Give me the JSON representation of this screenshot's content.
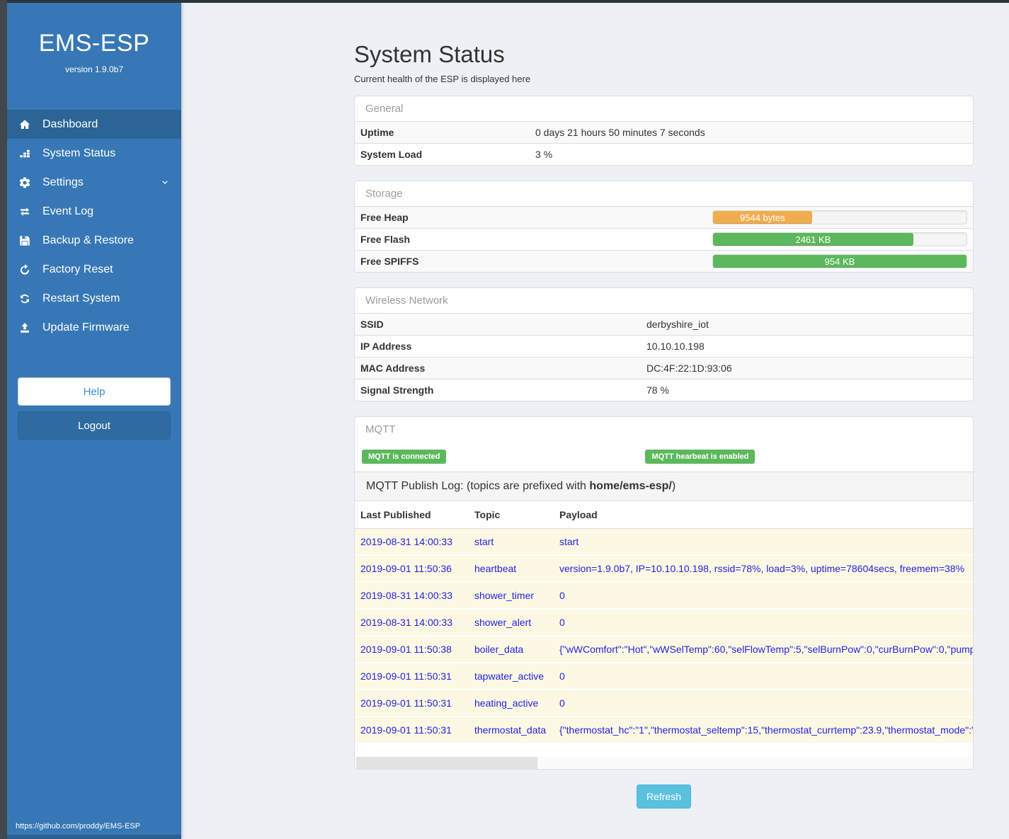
{
  "app": {
    "title": "EMS-ESP",
    "version": "version 1.9.0b7",
    "footer_url": "https://github.com/proddy/EMS-ESP"
  },
  "sidebar": {
    "items": [
      {
        "key": "dashboard",
        "label": "Dashboard",
        "icon": "home",
        "active": true,
        "chevron": false
      },
      {
        "key": "system-status",
        "label": "System Status",
        "icon": "status",
        "active": false,
        "chevron": false
      },
      {
        "key": "settings",
        "label": "Settings",
        "icon": "gear",
        "active": false,
        "chevron": true
      },
      {
        "key": "event-log",
        "label": "Event Log",
        "icon": "exchange",
        "active": false,
        "chevron": false
      },
      {
        "key": "backup-restore",
        "label": "Backup & Restore",
        "icon": "save",
        "active": false,
        "chevron": false
      },
      {
        "key": "factory-reset",
        "label": "Factory Reset",
        "icon": "repeat",
        "active": false,
        "chevron": false
      },
      {
        "key": "restart-system",
        "label": "Restart System",
        "icon": "sync",
        "active": false,
        "chevron": false
      },
      {
        "key": "update-firmware",
        "label": "Update Firmware",
        "icon": "upload",
        "active": false,
        "chevron": false
      }
    ],
    "help_label": "Help",
    "logout_label": "Logout"
  },
  "page": {
    "title": "System Status",
    "subtitle": "Current health of the ESP is displayed here"
  },
  "general": {
    "header": "General",
    "rows": [
      {
        "label": "Uptime",
        "value": "0 days 21 hours 50 minutes 7 seconds"
      },
      {
        "label": "System Load",
        "value": "3 %"
      }
    ]
  },
  "storage": {
    "header": "Storage",
    "rows": [
      {
        "label": "Free Heap",
        "value": "9544 bytes",
        "percent": 39,
        "color": "#f0ad4e"
      },
      {
        "label": "Free Flash",
        "value": "2461 KB",
        "percent": 79,
        "color": "#5cb85c"
      },
      {
        "label": "Free SPIFFS",
        "value": "954 KB",
        "percent": 100,
        "color": "#5cb85c"
      }
    ]
  },
  "wireless": {
    "header": "Wireless Network",
    "rows": [
      {
        "label": "SSID",
        "value": "derbyshire_iot"
      },
      {
        "label": "IP Address",
        "value": "10.10.10.198"
      },
      {
        "label": "MAC Address",
        "value": "DC:4F:22:1D:93:06"
      },
      {
        "label": "Signal Strength",
        "value": "78 %"
      }
    ]
  },
  "mqtt": {
    "header": "MQTT",
    "badges": [
      "MQTT is connected",
      "MQTT hearbeat is enabled"
    ],
    "log_title": {
      "prefix": "MQTT Publish Log: (topics are prefixed with ",
      "bold": "home/ems-esp/",
      "suffix": ")"
    },
    "table": {
      "headers": [
        "Last Published",
        "Topic",
        "Payload"
      ],
      "rows": [
        {
          "time": "2019-08-31 14:00:33",
          "topic": "start",
          "payload": "start"
        },
        {
          "time": "2019-09-01 11:50:36",
          "topic": "heartbeat",
          "payload": "version=1.9.0b7, IP=10.10.10.198, rssid=78%, load=3%, uptime=78604secs, freemem=38%"
        },
        {
          "time": "2019-08-31 14:00:33",
          "topic": "shower_timer",
          "payload": "0"
        },
        {
          "time": "2019-08-31 14:00:33",
          "topic": "shower_alert",
          "payload": "0"
        },
        {
          "time": "2019-09-01 11:50:38",
          "topic": "boiler_data",
          "payload": "{\"wWComfort\":\"Hot\",\"wWSelTemp\":60,\"selFlowTemp\":5,\"selBurnPow\":0,\"curBurnPow\":0,\"pump"
        },
        {
          "time": "2019-09-01 11:50:31",
          "topic": "tapwater_active",
          "payload": "0"
        },
        {
          "time": "2019-09-01 11:50:31",
          "topic": "heating_active",
          "payload": "0"
        },
        {
          "time": "2019-09-01 11:50:31",
          "topic": "thermostat_data",
          "payload": "{\"thermostat_hc\":\"1\",\"thermostat_seltemp\":15,\"thermostat_currtemp\":23.9,\"thermostat_mode\":\""
        }
      ]
    },
    "refresh_label": "Refresh"
  },
  "colors": {
    "sidebar": "#3777b5",
    "sidebar_active": "#2c6496",
    "success": "#5cb85c",
    "warning": "#f0ad4e",
    "info": "#5bc0de",
    "link": "#2323dd",
    "log_row_bg": "#fcf8e3"
  }
}
